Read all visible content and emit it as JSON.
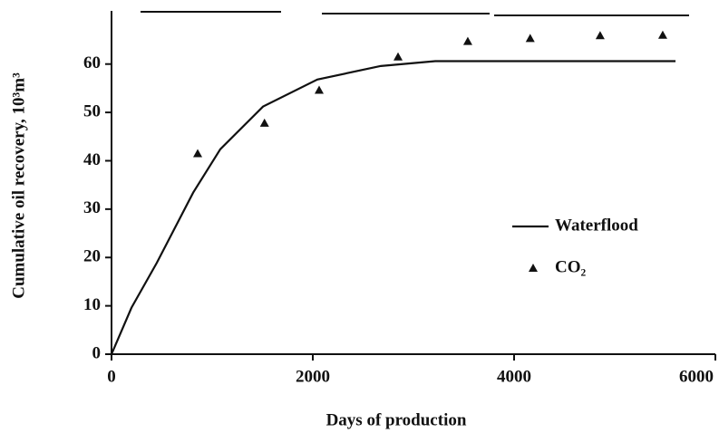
{
  "chart_data": {
    "type": "line",
    "xlabel": "Days of production",
    "ylabel": "Cumulative oil recovery, 10³m³",
    "xlim": [
      0,
      6000
    ],
    "xticks": [
      0,
      2000,
      4000,
      6000
    ],
    "ylim": [
      0,
      71
    ],
    "yticks": [
      0,
      10,
      20,
      30,
      40,
      50,
      60
    ],
    "legend": "right",
    "series": [
      {
        "name": "Waterflood",
        "color": "#111111",
        "mode": "line",
        "x": [
          0,
          198,
          450,
          811,
          1081,
          1505,
          2045,
          2676,
          3216,
          5604
        ],
        "values": [
          0,
          9.6,
          18.9,
          33.4,
          42.4,
          51.2,
          56.8,
          59.6,
          60.6,
          60.6
        ]
      },
      {
        "name": "CO₂",
        "color": "#111111",
        "mode": "markers",
        "x": [
          856,
          1520,
          2063,
          2847,
          3540,
          4160,
          4855,
          5477
        ],
        "values": [
          41.5,
          47.8,
          54.6,
          61.5,
          64.7,
          65.3,
          65.9,
          66
        ]
      }
    ]
  }
}
